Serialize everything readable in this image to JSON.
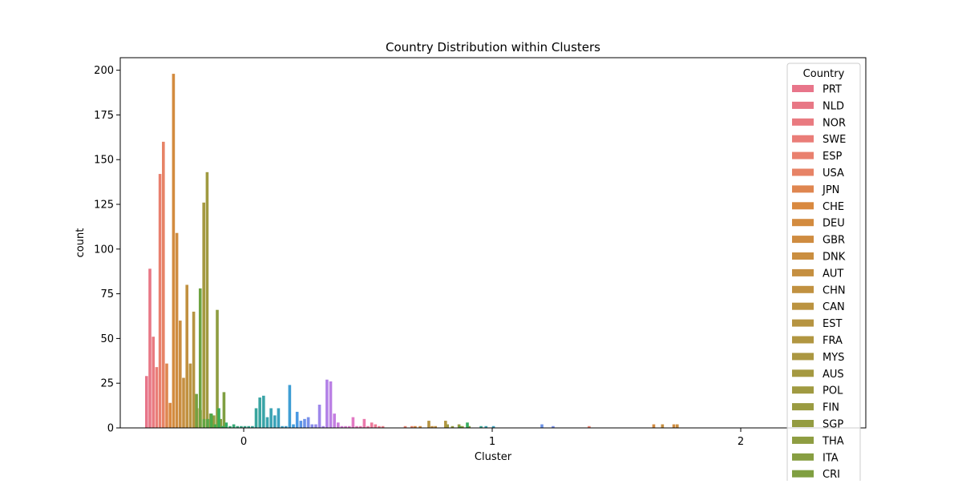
{
  "chart_data": {
    "type": "bar",
    "title": "Country Distribution within Clusters",
    "xlabel": "Cluster",
    "ylabel": "count",
    "categories": [
      "0",
      "1",
      "2"
    ],
    "xticks": [
      "0",
      "1",
      "2"
    ],
    "yticks": [
      "0",
      "25",
      "50",
      "75",
      "100",
      "125",
      "150",
      "175",
      "200"
    ],
    "ylim": [
      0,
      207
    ],
    "grid": false,
    "legend": {
      "title": "Country",
      "position": "right"
    },
    "series": [
      {
        "name": "PRT",
        "color": "#e8758a",
        "values": [
          29,
          0,
          0
        ]
      },
      {
        "name": "NLD",
        "color": "#e87785",
        "values": [
          89,
          0,
          0
        ]
      },
      {
        "name": "NOR",
        "color": "#e97a80",
        "values": [
          51,
          0,
          0
        ]
      },
      {
        "name": "SWE",
        "color": "#ea7d78",
        "values": [
          34,
          0,
          0
        ]
      },
      {
        "name": "ESP",
        "color": "#e9806e",
        "values": [
          142,
          0,
          0
        ]
      },
      {
        "name": "USA",
        "color": "#e78366",
        "values": [
          160,
          1,
          0
        ]
      },
      {
        "name": "JPN",
        "color": "#df8650",
        "values": [
          36,
          0,
          0
        ]
      },
      {
        "name": "CHE",
        "color": "#d9893f",
        "values": [
          14,
          0,
          0
        ]
      },
      {
        "name": "DEU",
        "color": "#d38b3f",
        "values": [
          198,
          0,
          0
        ]
      },
      {
        "name": "GBR",
        "color": "#cf8c40",
        "values": [
          109,
          0,
          2
        ]
      },
      {
        "name": "DNK",
        "color": "#ca8e40",
        "values": [
          60,
          0,
          2
        ]
      },
      {
        "name": "AUT",
        "color": "#c58f40",
        "values": [
          28,
          1,
          0
        ]
      },
      {
        "name": "CHN",
        "color": "#c19140",
        "values": [
          80,
          1,
          0
        ]
      },
      {
        "name": "CAN",
        "color": "#bb9340",
        "values": [
          36,
          0,
          0
        ]
      },
      {
        "name": "EST",
        "color": "#b69441",
        "values": [
          65,
          0,
          0
        ]
      },
      {
        "name": "FRA",
        "color": "#b19641",
        "values": [
          11,
          4,
          0
        ]
      },
      {
        "name": "MYS",
        "color": "#ab9741",
        "values": [
          10,
          0,
          0
        ]
      },
      {
        "name": "AUS",
        "color": "#a59941",
        "values": [
          126,
          0,
          0
        ]
      },
      {
        "name": "POL",
        "color": "#a09a41",
        "values": [
          143,
          0,
          0
        ]
      },
      {
        "name": "FIN",
        "color": "#9a9b41",
        "values": [
          8,
          2,
          0
        ]
      },
      {
        "name": "SGP",
        "color": "#949c41",
        "values": [
          7,
          1,
          0
        ]
      },
      {
        "name": "THA",
        "color": "#8e9d41",
        "values": [
          66,
          0,
          0
        ]
      },
      {
        "name": "ITA",
        "color": "#879e41",
        "values": [
          5,
          1,
          0
        ]
      },
      {
        "name": "CRI",
        "color": "#7f9f41",
        "values": [
          20,
          0,
          0
        ]
      }
    ],
    "extra_bars": [
      {
        "x": -0.19,
        "v": 19,
        "color": "#76a040"
      },
      {
        "x": -0.175,
        "v": 78,
        "color": "#6da340"
      },
      {
        "x": -0.16,
        "v": 5,
        "color": "#64a542"
      },
      {
        "x": -0.145,
        "v": 5,
        "color": "#58a745"
      },
      {
        "x": -0.13,
        "v": 8,
        "color": "#4ea949"
      },
      {
        "x": -0.115,
        "v": 2,
        "color": "#44ab4c"
      },
      {
        "x": -0.1,
        "v": 11,
        "color": "#3aac55"
      },
      {
        "x": -0.085,
        "v": 1,
        "color": "#36ad5f"
      },
      {
        "x": -0.07,
        "v": 3,
        "color": "#35ad68"
      },
      {
        "x": -0.055,
        "v": 1,
        "color": "#35ac70"
      },
      {
        "x": -0.04,
        "v": 2,
        "color": "#36ab78"
      },
      {
        "x": -0.025,
        "v": 1,
        "color": "#36aa7f"
      },
      {
        "x": -0.01,
        "v": 1,
        "color": "#37a986"
      },
      {
        "x": 0.005,
        "v": 1,
        "color": "#37a88c"
      },
      {
        "x": 0.02,
        "v": 1,
        "color": "#38a792"
      },
      {
        "x": 0.035,
        "v": 1,
        "color": "#38a698"
      },
      {
        "x": 0.05,
        "v": 11,
        "color": "#39a59d"
      },
      {
        "x": 0.065,
        "v": 17,
        "color": "#39a5a2"
      },
      {
        "x": 0.08,
        "v": 18,
        "color": "#3aa4a7"
      },
      {
        "x": 0.095,
        "v": 6,
        "color": "#3aa4ad"
      },
      {
        "x": 0.11,
        "v": 11,
        "color": "#3ba3b2"
      },
      {
        "x": 0.125,
        "v": 7,
        "color": "#3ba3b8"
      },
      {
        "x": 0.14,
        "v": 11,
        "color": "#3ca2be"
      },
      {
        "x": 0.155,
        "v": 1,
        "color": "#3da1c5"
      },
      {
        "x": 0.17,
        "v": 1,
        "color": "#3e9fcc"
      },
      {
        "x": 0.185,
        "v": 24,
        "color": "#3f9ed4"
      },
      {
        "x": 0.2,
        "v": 2,
        "color": "#409cdd"
      },
      {
        "x": 0.215,
        "v": 9,
        "color": "#4a99e3"
      },
      {
        "x": 0.23,
        "v": 4,
        "color": "#5c96e6"
      },
      {
        "x": 0.245,
        "v": 5,
        "color": "#6c93e8"
      },
      {
        "x": 0.26,
        "v": 6,
        "color": "#7a90ea"
      },
      {
        "x": 0.275,
        "v": 2,
        "color": "#878deb"
      },
      {
        "x": 0.29,
        "v": 2,
        "color": "#938aeb"
      },
      {
        "x": 0.305,
        "v": 13,
        "color": "#9e87ea"
      },
      {
        "x": 0.32,
        "v": 1,
        "color": "#a885e9"
      },
      {
        "x": 0.335,
        "v": 27,
        "color": "#b282e7"
      },
      {
        "x": 0.35,
        "v": 26,
        "color": "#bb80e4"
      },
      {
        "x": 0.365,
        "v": 8,
        "color": "#c37ee0"
      },
      {
        "x": 0.38,
        "v": 3,
        "color": "#cb7ddc"
      },
      {
        "x": 0.395,
        "v": 1,
        "color": "#d27bd7"
      },
      {
        "x": 0.41,
        "v": 1,
        "color": "#d87ad1"
      },
      {
        "x": 0.425,
        "v": 1,
        "color": "#dd7acb"
      },
      {
        "x": 0.44,
        "v": 6,
        "color": "#e279c4"
      },
      {
        "x": 0.455,
        "v": 1,
        "color": "#e679bc"
      },
      {
        "x": 0.47,
        "v": 1,
        "color": "#e979b4"
      },
      {
        "x": 0.485,
        "v": 5,
        "color": "#eb79ac"
      },
      {
        "x": 0.5,
        "v": 1,
        "color": "#ec7aa4"
      },
      {
        "x": 0.515,
        "v": 3,
        "color": "#ed7a9c"
      },
      {
        "x": 0.53,
        "v": 2,
        "color": "#ed7b95"
      },
      {
        "x": 0.545,
        "v": 1,
        "color": "#ed7c8f"
      },
      {
        "x": 0.56,
        "v": 1,
        "color": "#ec7d8b"
      },
      {
        "x": 0.65,
        "v": 1,
        "color": "#e8806f"
      },
      {
        "x": 0.69,
        "v": 1,
        "color": "#d9893f"
      },
      {
        "x": 0.71,
        "v": 1,
        "color": "#cf8c40"
      },
      {
        "x": 0.745,
        "v": 4,
        "color": "#b69441"
      },
      {
        "x": 0.82,
        "v": 2,
        "color": "#a09a41"
      },
      {
        "x": 0.84,
        "v": 1,
        "color": "#949c41"
      },
      {
        "x": 0.87,
        "v": 1,
        "color": "#58a745"
      },
      {
        "x": 0.9,
        "v": 3,
        "color": "#36ad5f"
      },
      {
        "x": 0.955,
        "v": 1,
        "color": "#38a792"
      },
      {
        "x": 0.975,
        "v": 1,
        "color": "#3ba3b2"
      },
      {
        "x": 1.005,
        "v": 1,
        "color": "#3ca2be"
      },
      {
        "x": 1.2,
        "v": 2,
        "color": "#6c93e8"
      },
      {
        "x": 1.245,
        "v": 1,
        "color": "#7a90ea"
      },
      {
        "x": 1.39,
        "v": 1,
        "color": "#e9806e"
      },
      {
        "x": 1.65,
        "v": 2,
        "color": "#d38b3f"
      },
      {
        "x": 1.685,
        "v": 2,
        "color": "#c58f40"
      }
    ]
  }
}
